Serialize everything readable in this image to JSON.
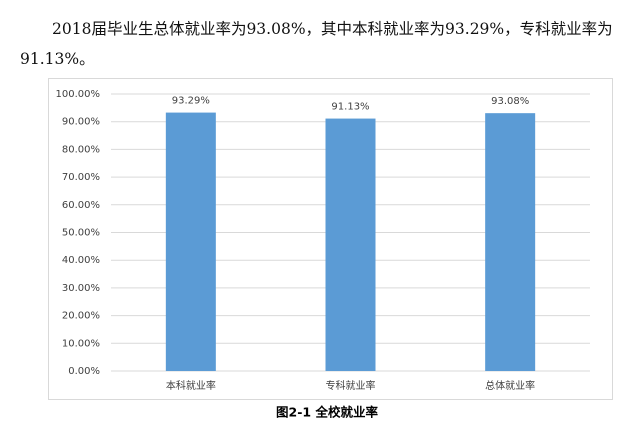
{
  "paragraph": "2018届毕业生总体就业率为93.08%，其中本科就业率为93.29%，专科就业率为91.13%。",
  "caption": "图2-1  全校就业率",
  "chart_data": {
    "type": "bar",
    "categories": [
      "本科就业率",
      "专科就业率",
      "总体就业率"
    ],
    "values": [
      93.29,
      91.13,
      93.08
    ],
    "value_labels": [
      "93.29%",
      "91.13%",
      "93.08%"
    ],
    "color": "#5b9bd5",
    "ylim": [
      0,
      100
    ],
    "yticks": [
      {
        "value": 0,
        "label": "0.00%"
      },
      {
        "value": 10,
        "label": "10.00%"
      },
      {
        "value": 20,
        "label": "20.00%"
      },
      {
        "value": 30,
        "label": "30.00%"
      },
      {
        "value": 40,
        "label": "40.00%"
      },
      {
        "value": 50,
        "label": "50.00%"
      },
      {
        "value": 60,
        "label": "60.00%"
      },
      {
        "value": 70,
        "label": "70.00%"
      },
      {
        "value": 80,
        "label": "80.00%"
      },
      {
        "value": 90,
        "label": "90.00%"
      },
      {
        "value": 100,
        "label": "100.00%"
      }
    ],
    "grid": true
  }
}
